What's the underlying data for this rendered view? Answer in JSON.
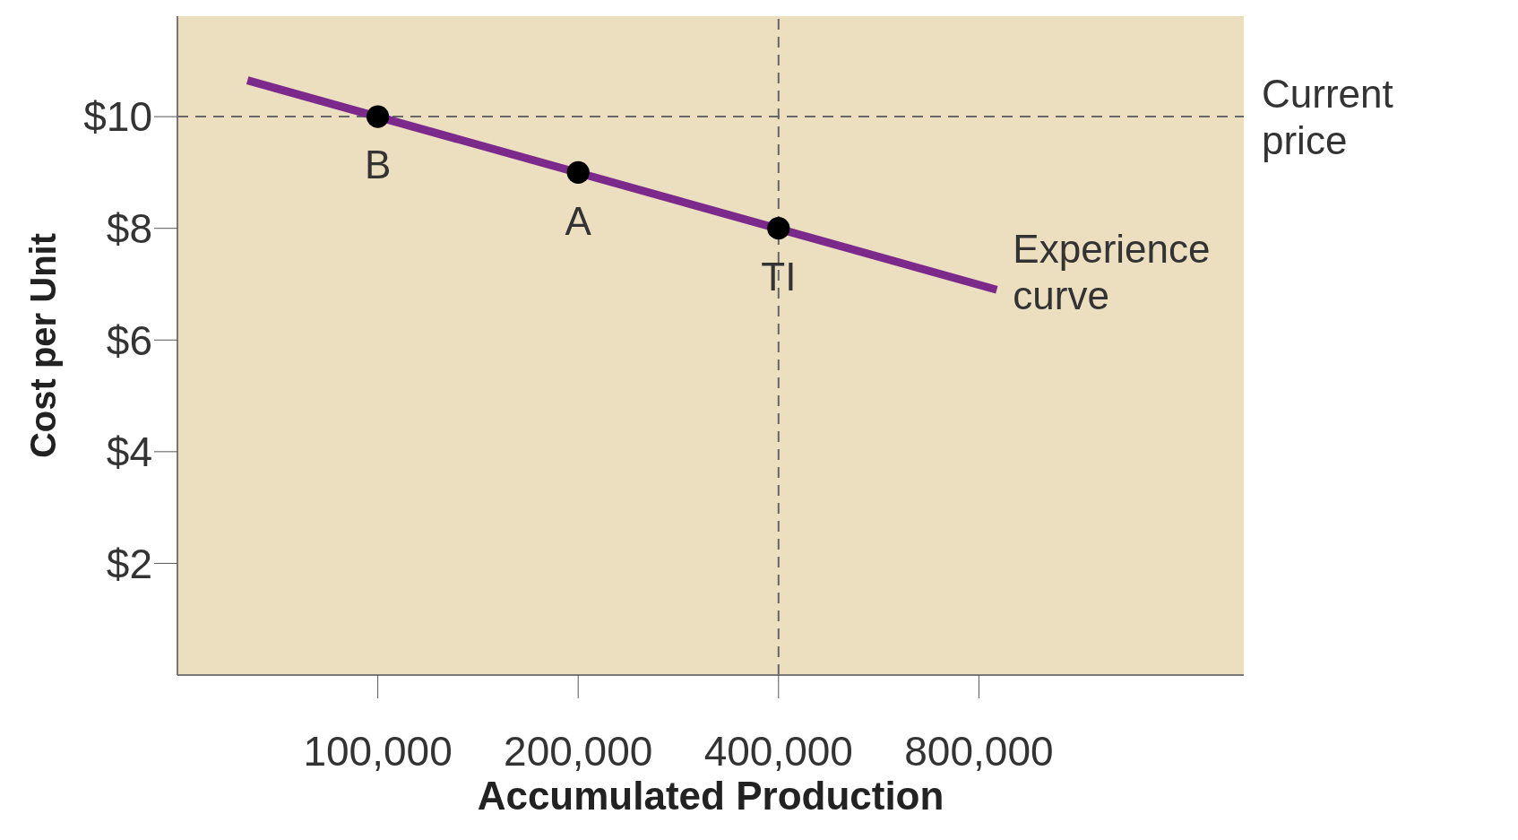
{
  "chart_data": {
    "type": "line",
    "xlabel": "Accumulated Production",
    "ylabel": "Cost per Unit",
    "log": "x",
    "xlim": [
      50000,
      2000000
    ],
    "ylim": [
      0,
      11.8
    ],
    "xticks": [
      {
        "value": 100000,
        "label": "100,000"
      },
      {
        "value": 200000,
        "label": "200,000"
      },
      {
        "value": 400000,
        "label": "400,000"
      },
      {
        "value": 800000,
        "label": "800,000"
      }
    ],
    "yticks": [
      {
        "value": 2,
        "label": "$2"
      },
      {
        "value": 4,
        "label": "$4"
      },
      {
        "value": 6,
        "label": "$6"
      },
      {
        "value": 8,
        "label": "$8"
      },
      {
        "value": 10,
        "label": "$10"
      }
    ],
    "grid": false,
    "series": [
      {
        "name": "Experience curve",
        "color": "#7b2a8c",
        "marker": "none",
        "x": [
          63700,
          851000
        ],
        "values": [
          10.65,
          6.9
        ]
      },
      {
        "type": "scatter",
        "color": "#000000",
        "marker": "circle",
        "x": [
          100000,
          200000,
          400000
        ],
        "values": [
          10,
          9,
          8
        ]
      }
    ],
    "ref_lines": [
      {
        "axis": "y",
        "value": 10,
        "label": "Current price",
        "color": "#666666",
        "line_style": "dashed"
      },
      {
        "axis": "x",
        "value": 400000,
        "label": null,
        "color": "#666666",
        "line_style": "dashed"
      }
    ],
    "annotations": [
      {
        "text": "B",
        "x": 100000,
        "y": 10
      },
      {
        "text": "A",
        "x": 200000,
        "y": 9
      },
      {
        "text": "TI",
        "x": 400000,
        "y": 8
      }
    ]
  }
}
